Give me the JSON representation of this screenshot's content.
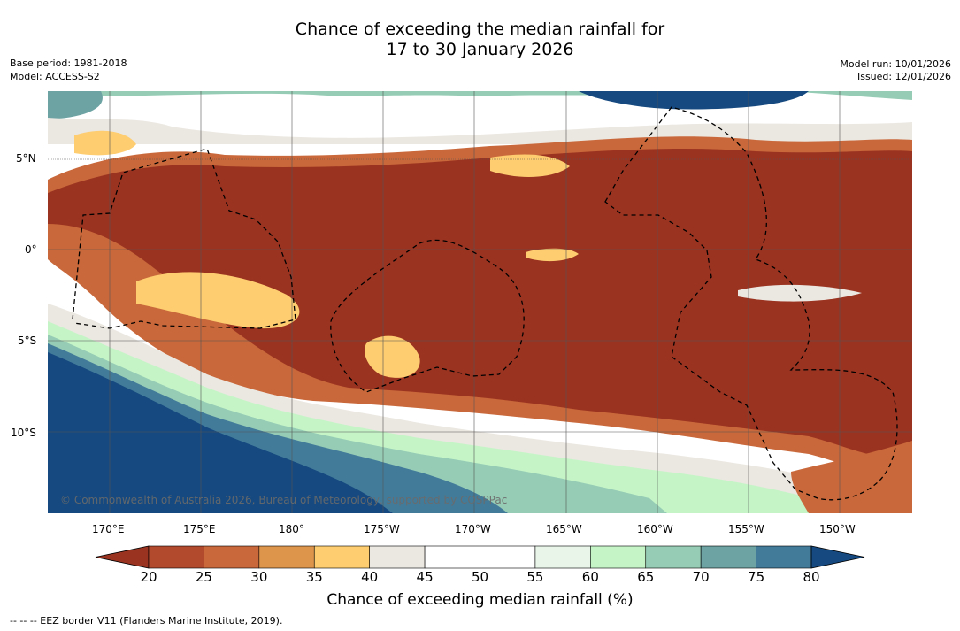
{
  "title": {
    "line1": "Chance of exceeding the median rainfall for",
    "line2": "17 to 30 January 2026"
  },
  "meta": {
    "base_period": "Base period: 1981-2018",
    "model": "Model: ACCESS-S2",
    "model_run": "Model run: 10/01/2026",
    "issued": "Issued: 12/01/2026"
  },
  "map": {
    "copyright": "© Commonwealth of Australia 2026, Bureau of Meteorology, supported by COSPPac",
    "lat_labels": [
      "5°N",
      "0°",
      "5°S",
      "10°S"
    ],
    "lon_labels": [
      "170°E",
      "175°E",
      "180°",
      "175°W",
      "170°W",
      "165°W",
      "160°W",
      "155°W",
      "150°W"
    ],
    "lon_range": [
      166.5,
      213.5
    ],
    "lat_range": [
      -14.5,
      8.5
    ]
  },
  "colorbar": {
    "ticks": [
      "20",
      "25",
      "30",
      "35",
      "40",
      "45",
      "50",
      "55",
      "60",
      "65",
      "70",
      "75",
      "80"
    ],
    "colors": [
      "#9b3321",
      "#b24a2d",
      "#c9683a",
      "#dd954b",
      "#fdcd70",
      "#ebe7e1",
      "#ffffff",
      "#ffffff",
      "#e9f5e9",
      "#c5f5c7",
      "#96ccb5",
      "#6da3a3",
      "#427b9a",
      "#15497f"
    ],
    "label": "Chance of exceeding median rainfall (%)"
  },
  "footnote": "--  --  -- EEZ border V11 (Flanders Marine Institute, 2019)."
}
